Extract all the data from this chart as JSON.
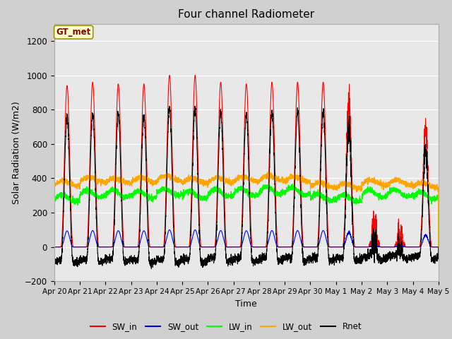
{
  "title": "Four channel Radiometer",
  "xlabel": "Time",
  "ylabel": "Solar Radiation (W/m2)",
  "ylim": [
    -200,
    1300
  ],
  "yticks": [
    -200,
    0,
    200,
    400,
    600,
    800,
    1000,
    1200
  ],
  "annotation_text": "GT_met",
  "fig_facecolor": "#d0d0d0",
  "ax_facecolor": "#e8e8e8",
  "grid_color": "white",
  "colors": {
    "SW_in": "red",
    "SW_out": "blue",
    "LW_in": "lime",
    "LW_out": "orange",
    "Rnet": "black"
  },
  "n_days": 15,
  "date_labels": [
    "Apr 20",
    "Apr 21",
    "Apr 22",
    "Apr 23",
    "Apr 24",
    "Apr 25",
    "Apr 26",
    "Apr 27",
    "Apr 28",
    "Apr 29",
    "Apr 30",
    "May 1",
    "May 2",
    "May 3",
    "May 4",
    "May 5"
  ],
  "seed": 42
}
